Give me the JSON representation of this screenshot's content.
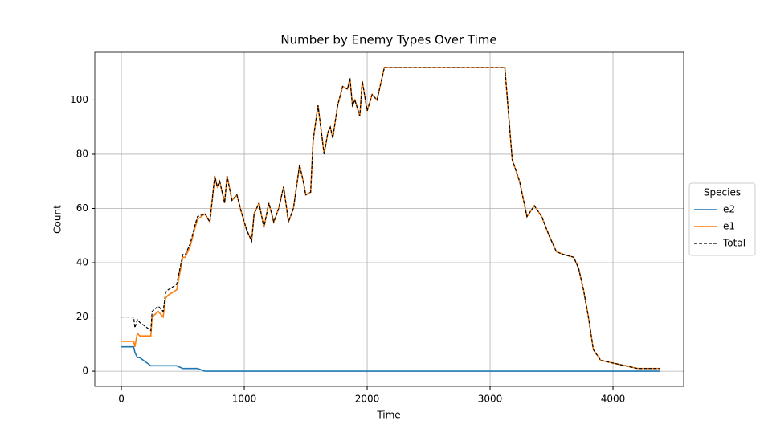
{
  "chart_data": {
    "type": "line",
    "title": "Number by Enemy Types Over Time",
    "x_label": "Time",
    "y_label": "Count",
    "x": [
      0,
      100,
      110,
      130,
      150,
      240,
      250,
      300,
      340,
      360,
      380,
      450,
      500,
      520,
      560,
      600,
      620,
      680,
      720,
      760,
      780,
      800,
      840,
      860,
      900,
      940,
      980,
      1020,
      1060,
      1080,
      1120,
      1160,
      1200,
      1240,
      1280,
      1320,
      1360,
      1400,
      1450,
      1480,
      1500,
      1540,
      1560,
      1600,
      1650,
      1680,
      1700,
      1720,
      1760,
      1800,
      1840,
      1860,
      1880,
      1900,
      1940,
      1960,
      2000,
      2040,
      2080,
      2140,
      3120,
      3150,
      3180,
      3240,
      3300,
      3360,
      3420,
      3480,
      3540,
      3600,
      3680,
      3720,
      3760,
      3800,
      3840,
      3900,
      4000,
      4100,
      4200,
      4300,
      4380
    ],
    "series": [
      {
        "name": "e2",
        "color": "#1f77b4",
        "dash": false,
        "values": [
          9,
          9,
          7,
          5,
          5,
          2,
          2,
          2,
          2,
          2,
          2,
          2,
          1,
          1,
          1,
          1,
          1,
          0,
          0,
          0,
          0,
          0,
          0,
          0,
          0,
          0,
          0,
          0,
          0,
          0,
          0,
          0,
          0,
          0,
          0,
          0,
          0,
          0,
          0,
          0,
          0,
          0,
          0,
          0,
          0,
          0,
          0,
          0,
          0,
          0,
          0,
          0,
          0,
          0,
          0,
          0,
          0,
          0,
          0,
          0,
          0,
          0,
          0,
          0,
          0,
          0,
          0,
          0,
          0,
          0,
          0,
          0,
          0,
          0,
          0,
          0,
          0,
          0,
          0,
          0,
          0
        ]
      },
      {
        "name": "e1",
        "color": "#ff7f0e",
        "dash": false,
        "values": [
          11,
          11,
          9,
          14,
          13,
          13,
          20,
          22,
          20,
          27,
          28,
          30,
          42,
          42,
          46,
          53,
          56,
          58,
          55,
          72,
          68,
          70,
          62,
          72,
          63,
          65,
          58,
          52,
          48,
          58,
          62,
          53,
          62,
          55,
          60,
          68,
          55,
          60,
          76,
          70,
          65,
          66,
          85,
          98,
          80,
          88,
          90,
          86,
          98,
          105,
          104,
          108,
          98,
          100,
          94,
          107,
          96,
          102,
          100,
          112,
          112,
          95,
          78,
          70,
          57,
          61,
          57,
          50,
          44,
          43,
          42,
          38,
          30,
          20,
          8,
          4,
          3,
          2,
          1,
          1,
          1
        ]
      },
      {
        "name": "Total",
        "color": "#000000",
        "dash": true,
        "values": [
          20,
          20,
          16,
          19,
          18,
          15,
          22,
          24,
          22,
          29,
          30,
          32,
          43,
          43,
          47,
          54,
          57,
          58,
          55,
          72,
          68,
          70,
          62,
          72,
          63,
          65,
          58,
          52,
          48,
          58,
          62,
          53,
          62,
          55,
          60,
          68,
          55,
          60,
          76,
          70,
          65,
          66,
          85,
          98,
          80,
          88,
          90,
          86,
          98,
          105,
          104,
          108,
          98,
          100,
          94,
          107,
          96,
          102,
          100,
          112,
          112,
          95,
          78,
          70,
          57,
          61,
          57,
          50,
          44,
          43,
          42,
          38,
          30,
          20,
          8,
          4,
          3,
          2,
          1,
          1,
          1
        ]
      }
    ],
    "xlim": [
      -216,
      4575
    ],
    "ylim": [
      -5.6,
      117.6
    ],
    "xticks": [
      0,
      1000,
      2000,
      3000,
      4000
    ],
    "yticks": [
      0,
      20,
      40,
      60,
      80,
      100
    ],
    "grid": true,
    "legend_title": "Species",
    "legend_position": "outside-right"
  }
}
